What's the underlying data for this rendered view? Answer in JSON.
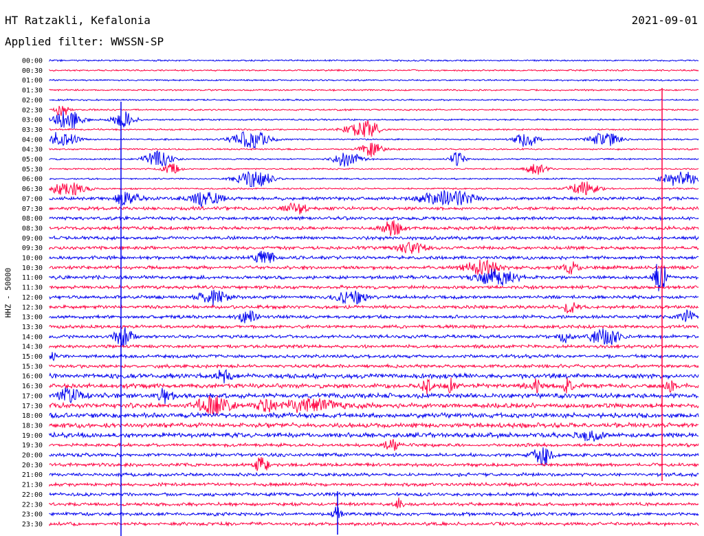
{
  "header": {
    "station": "HT Ratzakli, Kefalonia",
    "date": "2021-09-01",
    "filter_label": "Applied filter: WWSSN-SP"
  },
  "colors": {
    "blue": "#0000ee",
    "red": "#ff0040",
    "text": "#000000"
  },
  "chart_data": {
    "type": "line",
    "title": "HT Ratzakli, Kefalonia",
    "ylabel": "HHZ - 50000",
    "trace_colors": [
      "#0000ee",
      "#ff0040"
    ],
    "rows": [
      "00:00",
      "00:30",
      "01:00",
      "01:30",
      "02:00",
      "02:30",
      "03:00",
      "03:30",
      "04:00",
      "04:30",
      "05:00",
      "05:30",
      "06:00",
      "06:30",
      "07:00",
      "07:30",
      "08:00",
      "08:30",
      "09:00",
      "09:30",
      "10:00",
      "10:30",
      "11:00",
      "11:30",
      "12:00",
      "12:30",
      "13:00",
      "13:30",
      "14:00",
      "14:30",
      "15:00",
      "15:30",
      "16:00",
      "16:30",
      "17:00",
      "17:30",
      "18:00",
      "18:30",
      "19:00",
      "19:30",
      "20:00",
      "20:30",
      "21:00",
      "21:30",
      "22:00",
      "22:30",
      "23:00",
      "23:30"
    ],
    "x_range_minutes": [
      0,
      30
    ],
    "grid": false,
    "legend": "none"
  }
}
